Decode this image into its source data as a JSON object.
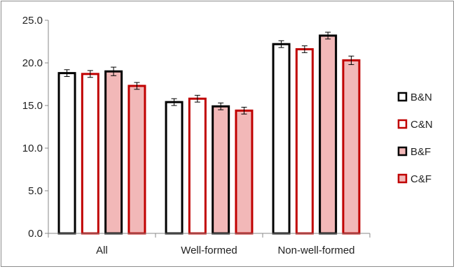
{
  "chart_data": {
    "type": "bar",
    "title": "",
    "xlabel": "",
    "ylabel": "",
    "ylim": [
      0,
      25
    ],
    "yticks": [
      "0.0",
      "5.0",
      "10.0",
      "15.0",
      "20.0",
      "25.0"
    ],
    "categories": [
      "All",
      "Well-formed",
      "Non-well-formed"
    ],
    "grid": false,
    "legend_position": "right",
    "series": [
      {
        "name": "B&N",
        "values": [
          18.8,
          15.4,
          22.2
        ],
        "errors": [
          0.4,
          0.4,
          0.4
        ],
        "fill": "#ffffff",
        "stroke": "#000000"
      },
      {
        "name": "C&N",
        "values": [
          18.7,
          15.8,
          21.6
        ],
        "errors": [
          0.4,
          0.4,
          0.4
        ],
        "fill": "#ffffff",
        "stroke": "#c00000"
      },
      {
        "name": "B&F",
        "values": [
          19.0,
          14.9,
          23.2
        ],
        "errors": [
          0.5,
          0.4,
          0.4
        ],
        "fill": "#f2b8b8",
        "stroke": "#000000"
      },
      {
        "name": "C&F",
        "values": [
          17.3,
          14.4,
          20.3
        ],
        "errors": [
          0.4,
          0.4,
          0.5
        ],
        "fill": "#f2b8b8",
        "stroke": "#c00000"
      }
    ]
  }
}
